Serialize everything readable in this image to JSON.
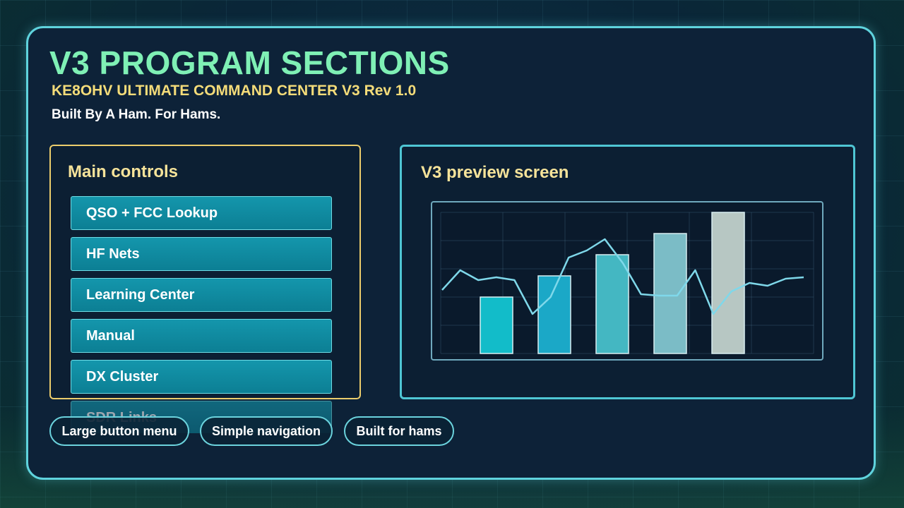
{
  "header": {
    "title": "V3 PROGRAM SECTIONS",
    "subtitle": "KE8OHV ULTIMATE COMMAND CENTER V3 Rev 1.0",
    "tagline": "Built By A Ham. For Hams."
  },
  "main_panel": {
    "title": "Main controls",
    "buttons": [
      "QSO + FCC Lookup",
      "HF Nets",
      "Learning Center",
      "Manual",
      "DX Cluster",
      "SDR Links"
    ]
  },
  "preview_panel": {
    "title": "V3 preview screen"
  },
  "features": [
    "Large button menu",
    "Simple navigation",
    "Built for hams"
  ],
  "chart_data": {
    "type": "bar",
    "categories": [
      "",
      "",
      "",
      "",
      ""
    ],
    "values": [
      40,
      55,
      70,
      85,
      100
    ],
    "ylim": [
      0,
      100
    ],
    "grid": true,
    "bar_colors": [
      "#12bcc9",
      "#1ba8c7",
      "#44b7c2",
      "#7bbcc6",
      "#b7c7c3"
    ],
    "line": {
      "color": "#7fd8ea",
      "values": [
        45,
        59,
        52,
        54,
        52,
        28,
        40,
        68,
        73,
        81,
        64,
        42,
        41,
        41,
        59,
        28,
        44,
        50,
        48,
        53,
        54
      ]
    }
  },
  "colors": {
    "accent": "#5fd3dd",
    "title": "#7ff0b5",
    "subtitle": "#f4dc79",
    "panel_border": "#eccd6c",
    "button": "#0c8ea3"
  }
}
